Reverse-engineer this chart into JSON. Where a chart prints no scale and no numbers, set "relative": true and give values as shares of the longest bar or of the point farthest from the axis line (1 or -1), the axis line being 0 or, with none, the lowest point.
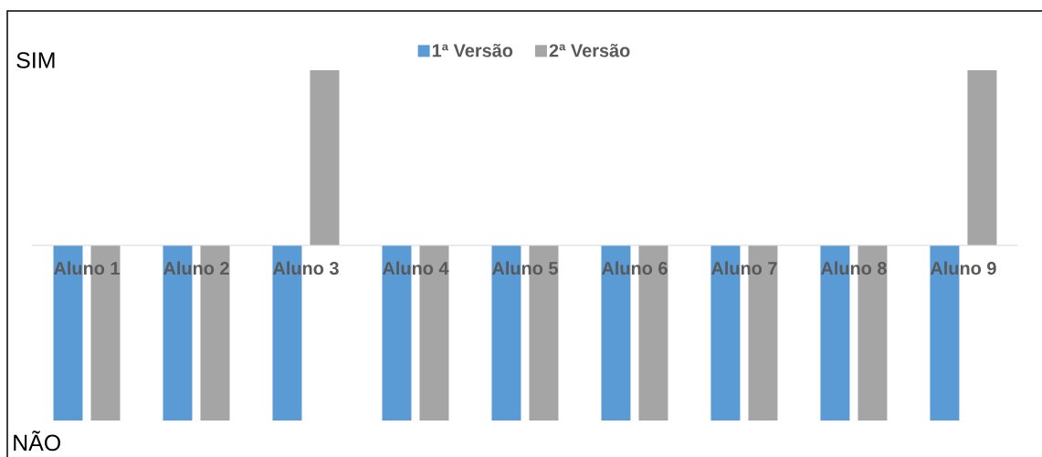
{
  "chart_data": {
    "type": "bar",
    "categories": [
      "Aluno 1",
      "Aluno 2",
      "Aluno 3",
      "Aluno 4",
      "Aluno 5",
      "Aluno 6",
      "Aluno 7",
      "Aluno 8",
      "Aluno 9"
    ],
    "series": [
      {
        "name": "1ª Versão",
        "color": "#5B9BD5",
        "values": [
          -1,
          -1,
          -1,
          -1,
          -1,
          -1,
          -1,
          -1,
          -1
        ]
      },
      {
        "name": "2ª Versão",
        "color": "#A5A5A5",
        "values": [
          -1,
          -1,
          1,
          -1,
          -1,
          -1,
          -1,
          -1,
          1
        ]
      }
    ],
    "relative": true,
    "legend": "top",
    "annotations": [
      "SIM",
      "NÃO"
    ]
  }
}
